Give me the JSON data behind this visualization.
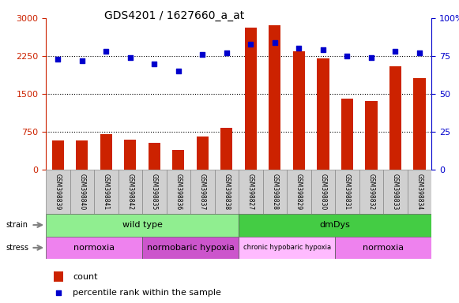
{
  "title": "GDS4201 / 1627660_a_at",
  "samples": [
    "GSM398839",
    "GSM398840",
    "GSM398841",
    "GSM398842",
    "GSM398835",
    "GSM398836",
    "GSM398837",
    "GSM398838",
    "GSM398827",
    "GSM398828",
    "GSM398829",
    "GSM398830",
    "GSM398831",
    "GSM398832",
    "GSM398833",
    "GSM398834"
  ],
  "counts": [
    580,
    575,
    710,
    600,
    530,
    390,
    660,
    830,
    2820,
    2860,
    2340,
    2200,
    1400,
    1360,
    2050,
    1820
  ],
  "percentile_ranks": [
    73,
    72,
    78,
    74,
    70,
    65,
    76,
    77,
    83,
    84,
    80,
    79,
    75,
    74,
    78,
    77
  ],
  "ylim_left": [
    0,
    3000
  ],
  "ylim_right": [
    0,
    100
  ],
  "yticks_left": [
    0,
    750,
    1500,
    2250,
    3000
  ],
  "yticks_right": [
    0,
    25,
    50,
    75,
    100
  ],
  "bar_color": "#cc2200",
  "dot_color": "#0000cc",
  "bg_color": "#ffffff",
  "strain_groups": [
    {
      "label": "wild type",
      "start": 0,
      "end": 8,
      "color": "#90ee90"
    },
    {
      "label": "dmDys",
      "start": 8,
      "end": 16,
      "color": "#44cc44"
    }
  ],
  "stress_groups": [
    {
      "label": "normoxia",
      "start": 0,
      "end": 4,
      "color": "#ee82ee"
    },
    {
      "label": "normobaric hypoxia",
      "start": 4,
      "end": 8,
      "color": "#cc55cc"
    },
    {
      "label": "chronic hypobaric hypoxia",
      "start": 8,
      "end": 12,
      "color": "#ffbbff"
    },
    {
      "label": "normoxia",
      "start": 12,
      "end": 16,
      "color": "#ee82ee"
    }
  ],
  "legend_count_label": "count",
  "legend_pct_label": "percentile rank within the sample",
  "bar_width": 0.5
}
